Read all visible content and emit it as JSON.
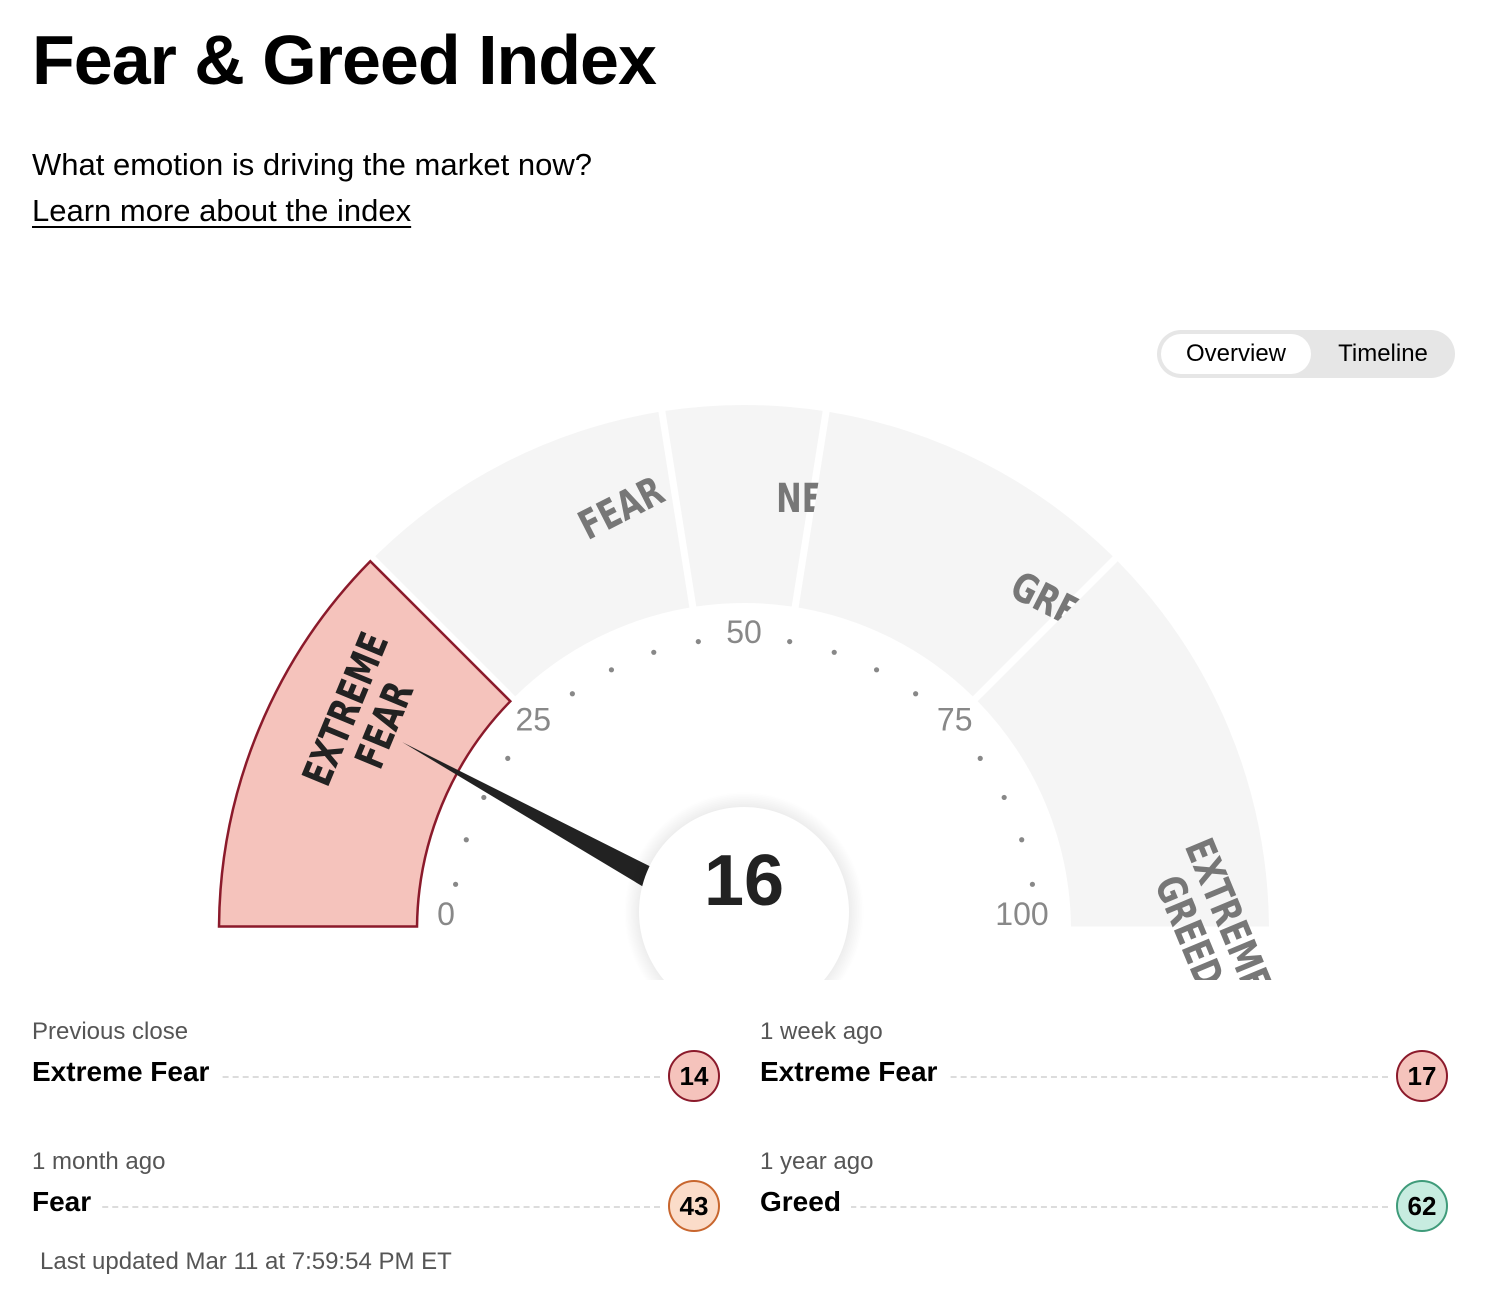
{
  "header": {
    "title": "Fear & Greed Index",
    "subtitle": "What emotion is driving the market now?",
    "learn_link": "Learn more about the index"
  },
  "view_toggle": {
    "options": [
      "Overview",
      "Timeline"
    ],
    "selected": "Overview"
  },
  "gauge": {
    "value": 16,
    "value_text": "16",
    "active_segment": "EXTREME FEAR",
    "segments": [
      {
        "label_lines": [
          "EXTREME",
          "FEAR"
        ],
        "from": 0,
        "to": 25
      },
      {
        "label_lines": [
          "FEAR"
        ],
        "from": 25,
        "to": 45
      },
      {
        "label_lines": [
          "NEUTRAL"
        ],
        "from": 45,
        "to": 55
      },
      {
        "label_lines": [
          "GREED"
        ],
        "from": 55,
        "to": 75
      },
      {
        "label_lines": [
          "EXTREME",
          "GREED"
        ],
        "from": 75,
        "to": 100
      }
    ],
    "scale_labels": [
      "0",
      "25",
      "50",
      "75",
      "100"
    ],
    "colors": {
      "active_fill": "#f5c3bc",
      "active_stroke": "#8b1a2b",
      "inactive_fill": "#f5f5f5",
      "inactive_text": "#777777",
      "active_text": "#222222",
      "needle": "#222222"
    }
  },
  "history": [
    {
      "label": "Previous close",
      "rating": "Extreme Fear",
      "value": "14",
      "badge_bg": "#f5c3bc",
      "badge_border": "#8b1a2b"
    },
    {
      "label": "1 week ago",
      "rating": "Extreme Fear",
      "value": "17",
      "badge_bg": "#f5c3bc",
      "badge_border": "#8b1a2b"
    },
    {
      "label": "1 month ago",
      "rating": "Fear",
      "value": "43",
      "badge_bg": "#fbdcc9",
      "badge_border": "#c8662e"
    },
    {
      "label": "1 year ago",
      "rating": "Greed",
      "value": "62",
      "badge_bg": "#c7ece0",
      "badge_border": "#3f9b7a"
    }
  ],
  "last_updated": "Last updated Mar 11 at 7:59:54 PM ET"
}
